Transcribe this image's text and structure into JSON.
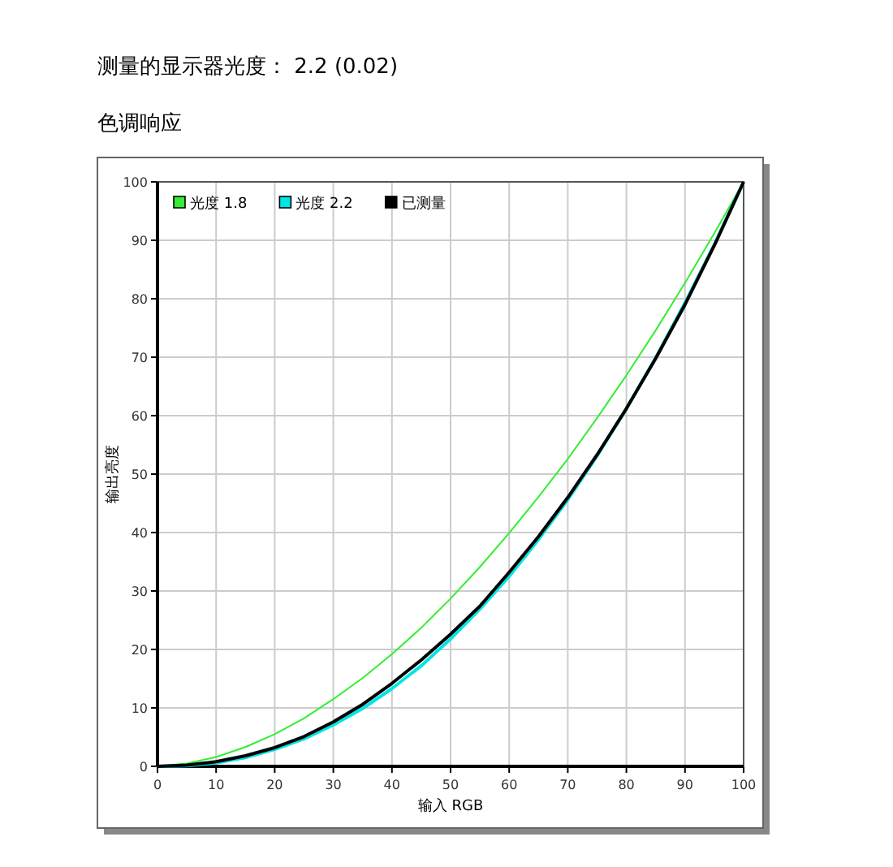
{
  "chart_data": {
    "type": "line",
    "title": "测量的显示器光度： 2.2 (0.02)",
    "subtitle": "色调响应",
    "xlabel": "输入 RGB",
    "ylabel": "输出亮度",
    "x": [
      0,
      5,
      10,
      15,
      20,
      25,
      30,
      35,
      40,
      45,
      50,
      55,
      60,
      65,
      70,
      75,
      80,
      85,
      90,
      95,
      100
    ],
    "series": [
      {
        "name": "光度 1.8",
        "color": "#33ee33",
        "values": [
          0,
          0.5,
          1.6,
          3.3,
          5.5,
          8.2,
          11.5,
          15.1,
          19.2,
          23.7,
          28.7,
          34.1,
          39.9,
          46.1,
          52.6,
          59.6,
          66.9,
          74.6,
          82.7,
          91.2,
          100
        ]
      },
      {
        "name": "光度 2.2",
        "color": "#00e5e5",
        "values": [
          0,
          0.1,
          0.6,
          1.5,
          2.9,
          4.7,
          7.1,
          9.9,
          13.3,
          17.2,
          21.8,
          26.9,
          32.5,
          38.8,
          45.6,
          53.1,
          61.2,
          69.9,
          79.3,
          89.3,
          100
        ]
      },
      {
        "name": "已测量",
        "color": "#000000",
        "values": [
          0,
          0.2,
          0.8,
          1.8,
          3.2,
          5.1,
          7.6,
          10.6,
          14.2,
          18.2,
          22.6,
          27.4,
          33.2,
          39.3,
          46.0,
          53.3,
          61.2,
          69.8,
          79.0,
          89.1,
          100
        ]
      }
    ],
    "xlim": [
      0,
      100
    ],
    "ylim": [
      0,
      100
    ],
    "xticks": [
      0,
      10,
      20,
      30,
      40,
      50,
      60,
      70,
      80,
      90,
      100
    ],
    "yticks": [
      0,
      10,
      20,
      30,
      40,
      50,
      60,
      70,
      80,
      90,
      100
    ],
    "grid": true,
    "legend": "top left",
    "marker": "none",
    "line_style": "solid"
  }
}
